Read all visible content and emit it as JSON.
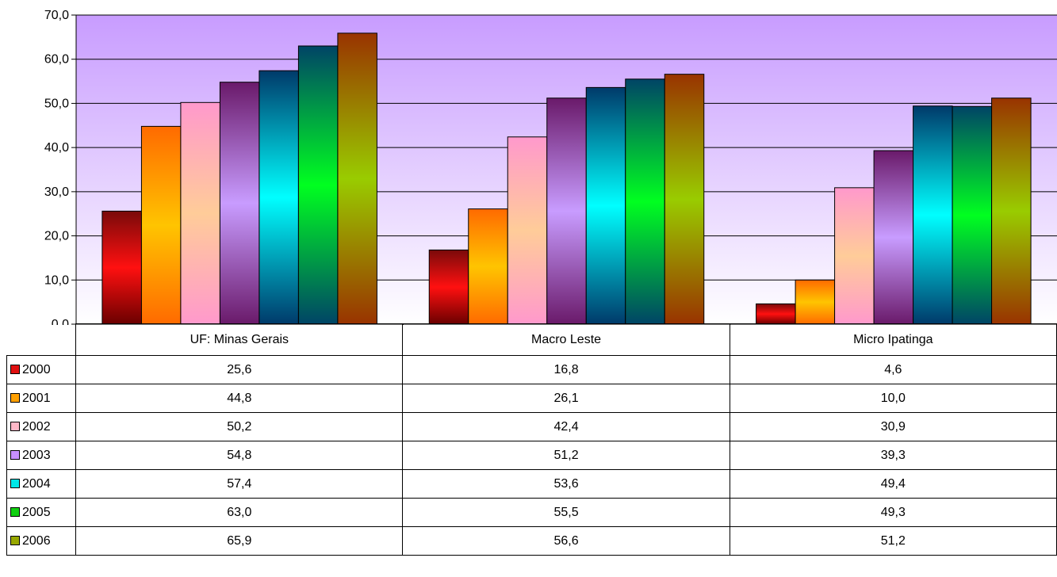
{
  "chart_data": {
    "type": "bar",
    "categories": [
      "UF: Minas Gerais",
      "Macro Leste",
      "Micro Ipatinga"
    ],
    "series": [
      {
        "name": "2000",
        "values": [
          25.6,
          16.8,
          4.6
        ],
        "color": "#e01010"
      },
      {
        "name": "2001",
        "values": [
          44.8,
          26.1,
          10.0
        ],
        "color": "#ffa000"
      },
      {
        "name": "2002",
        "values": [
          50.2,
          42.4,
          30.9
        ],
        "color": "#ffb8c8"
      },
      {
        "name": "2003",
        "values": [
          54.8,
          51.2,
          39.3
        ],
        "color": "#c890ff"
      },
      {
        "name": "2004",
        "values": [
          57.4,
          53.6,
          49.4
        ],
        "color": "#00e8e8"
      },
      {
        "name": "2005",
        "values": [
          63.0,
          55.5,
          49.3
        ],
        "color": "#10d010"
      },
      {
        "name": "2006",
        "values": [
          65.9,
          56.6,
          51.2
        ],
        "color": "#98a800"
      }
    ],
    "y_ticks": [
      "0,0",
      "10,0",
      "20,0",
      "30,0",
      "40,0",
      "50,0",
      "60,0",
      "70,0"
    ],
    "ylim": [
      0,
      70
    ],
    "grid": true,
    "legend": "data table below chart",
    "value_format": "one decimal, comma separator"
  }
}
